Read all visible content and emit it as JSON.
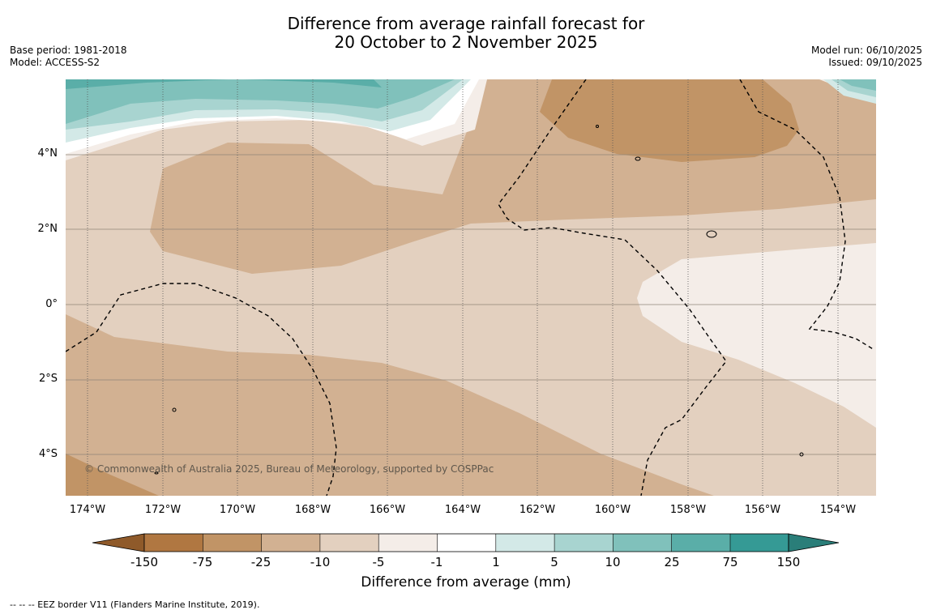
{
  "title": {
    "line1": "Difference from average rainfall forecast for",
    "line2": "20 October to 2 November 2025"
  },
  "meta": {
    "base_period": "Base period: 1981-2018",
    "model": "Model: ACCESS-S2",
    "model_run": "Model run: 06/10/2025",
    "issued": "Issued: 09/10/2025"
  },
  "map": {
    "copyright": "© Commonwealth of Australia 2025, Bureau of Meteorology, supported by COSPPac",
    "lat_labels": [
      "4°N",
      "2°N",
      "0°",
      "2°S",
      "4°S"
    ],
    "lon_labels": [
      "174°W",
      "172°W",
      "170°W",
      "168°W",
      "166°W",
      "164°W",
      "162°W",
      "160°W",
      "158°W",
      "156°W",
      "154°W"
    ],
    "extent": {
      "lon_min": -174.6,
      "lon_max": -153.0,
      "lat_min": -5.2,
      "lat_max": 5.9
    }
  },
  "colorbar": {
    "title": "Difference from average (mm)",
    "tick_labels": [
      "-150",
      "-75",
      "-25",
      "-10",
      "-5",
      "-1",
      "1",
      "5",
      "10",
      "25",
      "75",
      "150"
    ],
    "colors": {
      "below_-150": "#8f5a2a",
      "-150_to_-75": "#b07741",
      "-75_to_-25": "#c19466",
      "-25_to_-10": "#d2b192",
      "-10_to_-5": "#e3d0bf",
      "-5_to_-1": "#f4ede8",
      "-1_to_1": "#ffffff",
      "1_to_5": "#d3e9e7",
      "5_to_10": "#a8d4d0",
      "10_to_25": "#80c1bb",
      "25_to_75": "#5aaea8",
      "75_to_150": "#359a95",
      "above_150": "#2a7e79"
    }
  },
  "footnote": "--  --  -- EEZ border V11 (Flanders Marine Institute, 2019)."
}
